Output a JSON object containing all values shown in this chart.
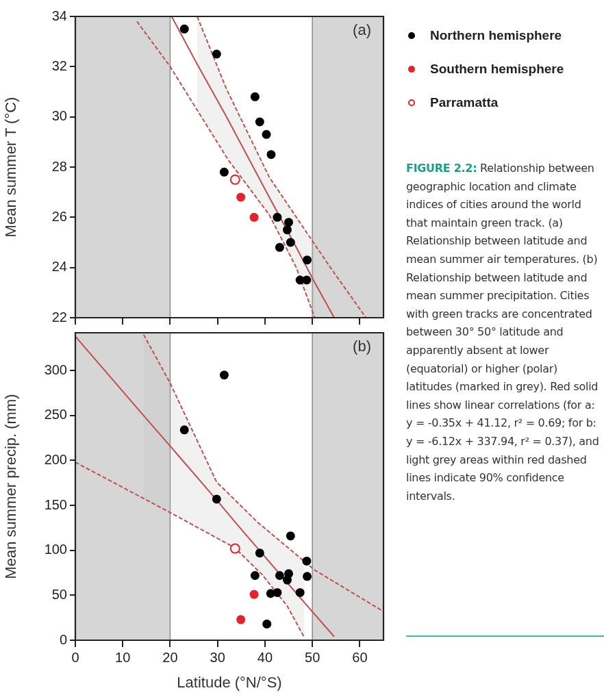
{
  "chart_data": [
    {
      "type": "scatter",
      "ylabel": "Mean summer T (°C)",
      "xlim": [
        0,
        65
      ],
      "xticks": [
        0,
        10,
        20,
        30,
        40,
        50,
        60
      ],
      "ylim": [
        22,
        34
      ],
      "yticks": [
        22,
        24,
        26,
        28,
        30,
        32,
        34
      ],
      "tick_labels": "y",
      "legend": "right",
      "marker": "circle",
      "annotations": [
        "(a)",
        "FIGURE 2.2:",
        "Relationship between geographic location and climate indices of cities around the world that maintain green track. (a) Relationship between latitude and mean summer air temperatures. (b) Relationship between latitude and mean summer precipitation. Cities with green tracks are concentrated between 30° 50° latitude and apparently absent at lower (equatorial) or higher (polar) latitudes (marked in grey). Red solid lines show linear correlations (for a: y = -0.35x + 41.12, r² = 0.69; for b: y = -6.12x + 337.94, r² = 0.37), and light grey areas within red dashed lines indicate 90% confidence intervals."
      ],
      "bands": [
        {
          "axis": "x",
          "from": 0,
          "to": 20,
          "color": "#d6d6d6"
        },
        {
          "axis": "x",
          "from": 50,
          "to": 65,
          "color": "#d6d6d6"
        }
      ],
      "series": [
        {
          "name": "Northern hemisphere",
          "color": "#000000",
          "x": [
            23,
            29.8,
            37.9,
            38.9,
            40.3,
            41.3,
            31.4,
            42.6,
            45,
            44.7,
            45.4,
            43.1,
            48.9,
            47.4,
            48.8
          ],
          "values": [
            33.5,
            32.5,
            30.8,
            29.8,
            29.3,
            28.5,
            27.8,
            26,
            25.8,
            25.5,
            25,
            24.8,
            24.3,
            23.5,
            23.5
          ]
        },
        {
          "name": "Southern hemisphere",
          "color": "#e8222a",
          "x": [
            34.9,
            37.7
          ],
          "values": [
            26.8,
            26
          ]
        },
        {
          "name": "Parramatta",
          "marker": "circle-open",
          "color": "#e8222a",
          "x": [
            33.7
          ],
          "values": [
            27.5
          ]
        },
        {
          "type": "line",
          "marker": "none",
          "color": "#c0504d",
          "x": [
            20.3,
            25.7,
            31.9,
            40.9,
            46.6,
            50.5,
            54.6
          ],
          "values": [
            34,
            32.1,
            30,
            26.8,
            24.8,
            23.4,
            22
          ],
          "lower": [
            null,
            30.3,
            28.4,
            26.1,
            24,
            22,
            null
          ],
          "upper": [
            null,
            34,
            31.1,
            27.6,
            26,
            24.9,
            null
          ]
        },
        {
          "type": "line",
          "line_style": "dashed",
          "marker": "none",
          "color": "#c0504d",
          "x": [
            25.7,
            31.9,
            40.9,
            53.8,
            61.3
          ],
          "values": [
            34,
            31.1,
            27.6,
            24,
            22
          ]
        },
        {
          "type": "line",
          "line_style": "dashed",
          "marker": "none",
          "color": "#c0504d",
          "x": [
            13,
            20,
            32.2,
            40.9,
            46.6,
            50.5
          ],
          "values": [
            33.8,
            32,
            28.3,
            26.1,
            24,
            22
          ]
        }
      ]
    },
    {
      "type": "scatter",
      "xlabel": "Latitude (°N/°S)",
      "ylabel": "Mean summer precip. (mm)",
      "xlim": [
        0,
        65
      ],
      "xticks": [
        0,
        10,
        20,
        30,
        40,
        50,
        60
      ],
      "ylim": [
        0,
        342
      ],
      "yticks": [
        0,
        50,
        100,
        150,
        200,
        250,
        300
      ],
      "marker": "circle",
      "annotations": [
        "(b)"
      ],
      "bands": [
        {
          "axis": "x",
          "from": 0,
          "to": 20,
          "color": "#d6d6d6"
        },
        {
          "axis": "x",
          "from": 50,
          "to": 65,
          "color": "#d6d6d6"
        }
      ],
      "series": [
        {
          "color": "#000000",
          "x": [
            31.4,
            23,
            29.8,
            45.4,
            38.9,
            48.8,
            37.9,
            43.1,
            45,
            44.7,
            48.9,
            41.2,
            42.6,
            47.4,
            40.4
          ],
          "values": [
            295,
            234,
            157,
            116,
            97,
            88,
            72,
            72,
            74,
            67,
            71,
            52,
            53,
            53,
            18
          ]
        },
        {
          "color": "#e8222a",
          "x": [
            37.7,
            34.9
          ],
          "values": [
            51,
            23
          ]
        },
        {
          "marker": "circle-open",
          "color": "#e8222a",
          "x": [
            33.7
          ],
          "values": [
            102
          ]
        },
        {
          "type": "line",
          "marker": "none",
          "color": "#c0504d",
          "x": [
            0,
            14.4,
            20,
            29.8,
            33.6,
            38.5,
            44.7,
            48.3,
            54.6
          ],
          "values": [
            338,
            250,
            216,
            156,
            132,
            102,
            64,
            42,
            4
          ],
          "lower": [
            null,
            158,
            142,
            114,
            103,
            78,
            38,
            3,
            null
          ],
          "upper": [
            null,
            340,
            286,
            176,
            156,
            131,
            104,
            88,
            null
          ]
        },
        {
          "type": "line",
          "line_style": "dashed",
          "marker": "none",
          "color": "#c0504d",
          "x": [
            14.4,
            20,
            29.8,
            38.5,
            50.5,
            65
          ],
          "values": [
            340,
            286,
            176,
            131,
            78,
            32
          ]
        },
        {
          "type": "line",
          "line_style": "dashed",
          "marker": "none",
          "color": "#c0504d",
          "x": [
            0,
            20,
            33.6,
            39.4,
            44.7,
            48.3
          ],
          "values": [
            198,
            142,
            103,
            73,
            38,
            3
          ]
        }
      ]
    }
  ]
}
